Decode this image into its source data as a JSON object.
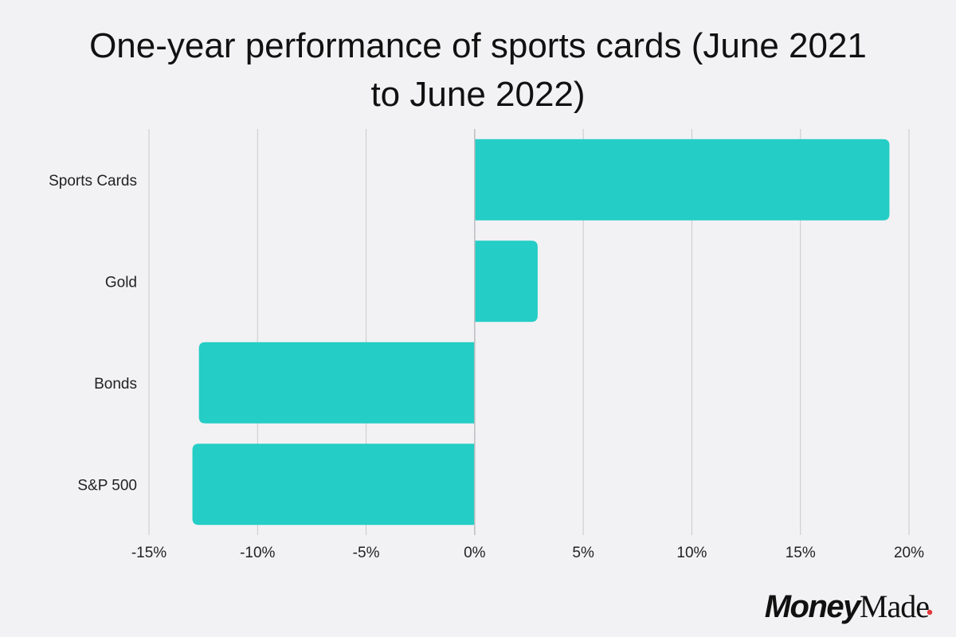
{
  "chart_data": {
    "type": "bar",
    "orientation": "horizontal",
    "title_lines": [
      "One-year performance of sports cards (June 2021",
      "to June 2022)"
    ],
    "categories": [
      "Sports Cards",
      "Gold",
      "Bonds",
      "S&P 500"
    ],
    "values": [
      19.1,
      2.9,
      -12.7,
      -13.0
    ],
    "xlim": [
      -15,
      20
    ],
    "xticks": [
      -15,
      -10,
      -5,
      0,
      5,
      10,
      15,
      20
    ],
    "xtick_labels": [
      "-15%",
      "-10%",
      "-5%",
      "0%",
      "5%",
      "10%",
      "15%",
      "20%"
    ],
    "bar_color": "#24cdc5",
    "grid": true,
    "xlabel": "",
    "ylabel": ""
  },
  "branding": {
    "logo_money": "Money",
    "logo_made": "Made",
    "logo_dot_color": "#e5383b"
  }
}
